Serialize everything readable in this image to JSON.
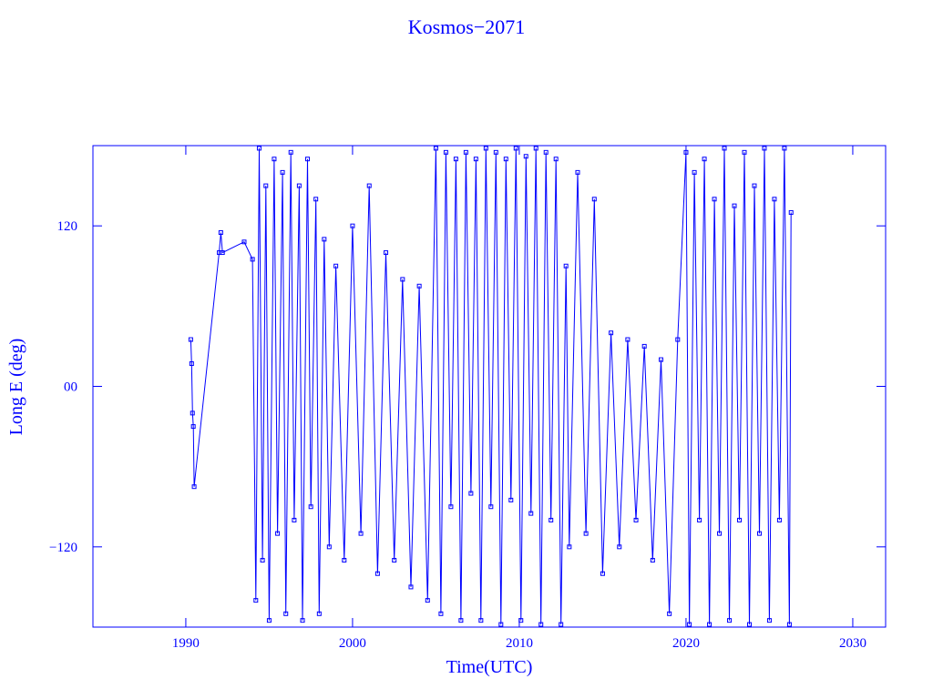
{
  "chart_data": {
    "type": "line",
    "title": "Kosmos−2071",
    "x_label": "Time(UTC)",
    "y_label": "Long E (deg)",
    "color": "#0000ff",
    "markers": true,
    "xlim": [
      1984.43,
      2031.97
    ],
    "ylim": [
      -180,
      180
    ],
    "xticks": [
      1990,
      2000,
      2010,
      2020,
      2030
    ],
    "yticks": [
      {
        "value": -120,
        "label": "−120"
      },
      {
        "value": 0,
        "label": "00"
      },
      120
    ],
    "x": [
      1990.3,
      1990.35,
      1990.4,
      1990.45,
      1990.5,
      1992.0,
      1992.1,
      1992.2,
      1993.5,
      1994.0,
      1994.2,
      1994.4,
      1994.6,
      1994.8,
      1995.0,
      1995.3,
      1995.5,
      1995.8,
      1996.0,
      1996.3,
      1996.5,
      1996.8,
      1997.0,
      1997.3,
      1997.5,
      1997.8,
      1998.0,
      1998.3,
      1998.6,
      1999.0,
      1999.5,
      2000.0,
      2000.5,
      2001.0,
      2001.5,
      2002.0,
      2002.5,
      2003.0,
      2003.5,
      2004.0,
      2004.5,
      2005.0,
      2005.3,
      2005.6,
      2005.9,
      2006.2,
      2006.5,
      2006.8,
      2007.1,
      2007.4,
      2007.7,
      2008.0,
      2008.3,
      2008.6,
      2008.9,
      2009.2,
      2009.5,
      2009.8,
      2010.1,
      2010.4,
      2010.7,
      2011.0,
      2011.3,
      2011.6,
      2011.9,
      2012.2,
      2012.5,
      2012.8,
      2013.0,
      2013.5,
      2014.0,
      2014.5,
      2015.0,
      2015.5,
      2016.0,
      2016.5,
      2017.0,
      2017.5,
      2018.0,
      2018.5,
      2019.0,
      2019.5,
      2020.0,
      2020.2,
      2020.5,
      2020.8,
      2021.1,
      2021.4,
      2021.7,
      2022.0,
      2022.3,
      2022.6,
      2022.9,
      2023.2,
      2023.5,
      2023.8,
      2024.1,
      2024.4,
      2024.7,
      2025.0,
      2025.3,
      2025.6,
      2025.9,
      2026.2,
      2026.3
    ],
    "values": [
      35,
      17,
      -20,
      -30,
      -75,
      100,
      115,
      100,
      108,
      95,
      -160,
      178,
      -130,
      150,
      -175,
      170,
      -110,
      160,
      -170,
      175,
      -100,
      150,
      -175,
      170,
      -90,
      140,
      -170,
      110,
      -120,
      90,
      -130,
      120,
      -110,
      150,
      -140,
      100,
      -130,
      80,
      -150,
      75,
      -160,
      178,
      -170,
      175,
      -90,
      170,
      -175,
      175,
      -80,
      170,
      -175,
      178,
      -90,
      175,
      -178,
      170,
      -85,
      178,
      -175,
      172,
      -95,
      178,
      -178,
      175,
      -100,
      170,
      -178,
      90,
      -120,
      160,
      -110,
      140,
      -140,
      40,
      -120,
      35,
      -100,
      30,
      -130,
      20,
      -170,
      35,
      175,
      -178,
      160,
      -100,
      170,
      -178,
      140,
      -110,
      178,
      -175,
      135,
      -100,
      175,
      -178,
      150,
      -110,
      178,
      -175,
      140,
      -100,
      178,
      -178,
      130
    ]
  }
}
